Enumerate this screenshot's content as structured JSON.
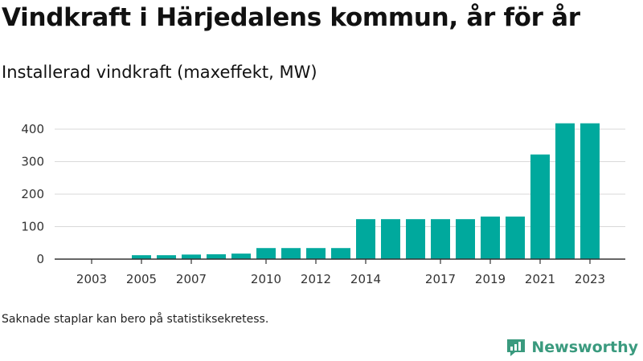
{
  "header": {
    "title": "Vindkraft i Härjedalens kommun, år för år",
    "subtitle": "Installerad vindkraft (maxeffekt, MW)"
  },
  "footer": {
    "note": "Saknade staplar kan bero på statistiksekretess.",
    "brand": "Newsworthy"
  },
  "colors": {
    "bar": "#00a99d",
    "grid": "#d9d9d9",
    "axis": "#333333",
    "brand": "#3a9a7e"
  },
  "chart_data": {
    "type": "bar",
    "title": "Installerad vindkraft (maxeffekt, MW)",
    "xlabel": "",
    "ylabel": "",
    "categories": [
      "2003",
      "2004",
      "2005",
      "2006",
      "2007",
      "2008",
      "2009",
      "2010",
      "2011",
      "2012",
      "2013",
      "2014",
      "2015",
      "2016",
      "2017",
      "2018",
      "2019",
      "2020",
      "2021",
      "2022",
      "2023"
    ],
    "values": [
      0,
      0,
      12,
      12,
      14,
      15,
      17,
      34,
      34,
      34,
      34,
      123,
      123,
      123,
      123,
      123,
      131,
      131,
      322,
      418,
      418
    ],
    "x_tick_labels": [
      "2003",
      "2005",
      "2007",
      "2010",
      "2012",
      "2014",
      "2017",
      "2019",
      "2021",
      "2023"
    ],
    "y_ticks": [
      0,
      100,
      200,
      300,
      400
    ],
    "ylim": [
      0,
      430
    ],
    "grid": true,
    "legend": "none"
  }
}
